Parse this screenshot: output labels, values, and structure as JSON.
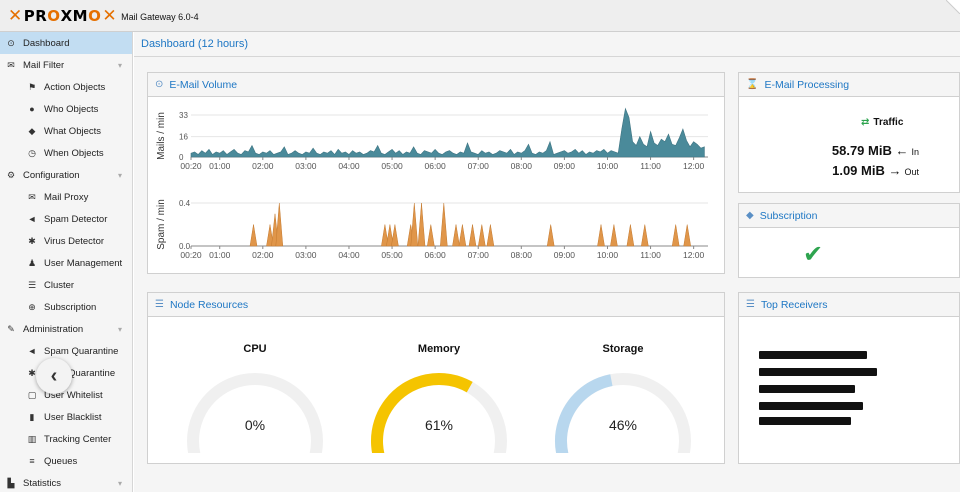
{
  "app": {
    "subtitle": "Mail Gateway 6.0-4"
  },
  "sidebar": {
    "items": [
      {
        "label": "Dashboard",
        "icon": "dashboard-icon",
        "glyph": "⊙",
        "level": "top",
        "active": true
      },
      {
        "label": "Mail Filter",
        "icon": "envelope-icon",
        "glyph": "✉",
        "level": "top",
        "expandable": true
      },
      {
        "label": "Action Objects",
        "icon": "flag-icon",
        "glyph": "⚑",
        "level": "sub"
      },
      {
        "label": "Who Objects",
        "icon": "user-circle-icon",
        "glyph": "●",
        "level": "sub"
      },
      {
        "label": "What Objects",
        "icon": "cube-icon",
        "glyph": "◆",
        "level": "sub"
      },
      {
        "label": "When Objects",
        "icon": "clock-icon",
        "glyph": "◷",
        "level": "sub"
      },
      {
        "label": "Configuration",
        "icon": "cogs-icon",
        "glyph": "⚙",
        "level": "top",
        "expandable": true
      },
      {
        "label": "Mail Proxy",
        "icon": "envelope-o-icon",
        "glyph": "✉",
        "level": "sub"
      },
      {
        "label": "Spam Detector",
        "icon": "bullhorn-icon",
        "glyph": "◄",
        "level": "sub"
      },
      {
        "label": "Virus Detector",
        "icon": "bug-icon",
        "glyph": "✱",
        "level": "sub"
      },
      {
        "label": "User Management",
        "icon": "users-icon",
        "glyph": "♟",
        "level": "sub"
      },
      {
        "label": "Cluster",
        "icon": "server-icon",
        "glyph": "☰",
        "level": "sub"
      },
      {
        "label": "Subscription",
        "icon": "support-icon",
        "glyph": "⊕",
        "level": "sub"
      },
      {
        "label": "Administration",
        "icon": "wrench-icon",
        "glyph": "✎",
        "level": "top",
        "expandable": true
      },
      {
        "label": "Spam Quarantine",
        "icon": "bullhorn-icon",
        "glyph": "◄",
        "level": "sub"
      },
      {
        "label": "Virus Quarantine",
        "icon": "bug-icon",
        "glyph": "✱",
        "level": "sub"
      },
      {
        "label": "User Whitelist",
        "icon": "file-o-icon",
        "glyph": "▢",
        "level": "sub"
      },
      {
        "label": "User Blacklist",
        "icon": "file-icon",
        "glyph": "▮",
        "level": "sub"
      },
      {
        "label": "Tracking Center",
        "icon": "map-o-icon",
        "glyph": "▥",
        "level": "sub"
      },
      {
        "label": "Queues",
        "icon": "bars-icon",
        "glyph": "≡",
        "level": "sub"
      },
      {
        "label": "Statistics",
        "icon": "bar-chart-icon",
        "glyph": "▙",
        "level": "top",
        "expandable": true
      }
    ]
  },
  "page": {
    "title": "Dashboard (12 hours)"
  },
  "email_volume": {
    "title": "E-Mail Volume"
  },
  "email_processing": {
    "title": "E-Mail Processing",
    "traffic_label": "Traffic",
    "in_value": "58.79 MiB",
    "in_label": "In",
    "out_value": "1.09 MiB",
    "out_label": "Out"
  },
  "subscription": {
    "title": "Subscription"
  },
  "node_resources": {
    "title": "Node Resources",
    "gauges": [
      {
        "label": "CPU",
        "value": "0%",
        "fraction": 0.0,
        "color": "#d9d9d9"
      },
      {
        "label": "Memory",
        "value": "61%",
        "fraction": 0.61,
        "color": "#f5c400"
      },
      {
        "label": "Storage",
        "value": "46%",
        "fraction": 0.46,
        "color": "#b8d7ee"
      }
    ]
  },
  "top_receivers": {
    "title": "Top Receivers"
  },
  "colors": {
    "mail_series": "#4a8a9a",
    "spam_series": "#e0964a",
    "accent": "#1e77c4"
  },
  "chart_data": [
    {
      "type": "area",
      "ylabel": "Mails / min",
      "ylim": [
        0,
        33
      ],
      "yticks": [
        "33",
        "16",
        "0"
      ],
      "xticks": [
        "00:20",
        "01:00",
        "02:00",
        "03:00",
        "04:00",
        "05:00",
        "06:00",
        "07:00",
        "08:00",
        "09:00",
        "10:00",
        "11:00",
        "12:00"
      ],
      "x_start_min": 20,
      "x_step_min": 5,
      "values": [
        3,
        4,
        2,
        5,
        3,
        6,
        2,
        4,
        3,
        5,
        2,
        4,
        6,
        3,
        2,
        5,
        4,
        9,
        3,
        2,
        4,
        3,
        5,
        2,
        3,
        4,
        8,
        2,
        3,
        5,
        3,
        2,
        4,
        3,
        7,
        3,
        2,
        4,
        3,
        5,
        2,
        6,
        3,
        4,
        2,
        5,
        3,
        4,
        2,
        3,
        5,
        4,
        9,
        3,
        2,
        4,
        6,
        3,
        5,
        2,
        4,
        3,
        8,
        3,
        2,
        5,
        4,
        3,
        6,
        3,
        2,
        4,
        5,
        3,
        2,
        4,
        3,
        11,
        4,
        3,
        2,
        5,
        3,
        4,
        2,
        3,
        5,
        4,
        3,
        6,
        2,
        4,
        3,
        5,
        10,
        3,
        2,
        4,
        3,
        5,
        12,
        2,
        3,
        4,
        5,
        3,
        4,
        6,
        3,
        5,
        2,
        4,
        3,
        5,
        4,
        6,
        3,
        5,
        4,
        3,
        22,
        38,
        31,
        12,
        9,
        16,
        10,
        8,
        20,
        11,
        9,
        14,
        12,
        18,
        10,
        9,
        15,
        22,
        13,
        8,
        12,
        10,
        7,
        8
      ]
    },
    {
      "type": "area",
      "ylabel": "Spam / min",
      "ylim": [
        0,
        0.4
      ],
      "yticks": [
        "0.4",
        "0.0"
      ],
      "xticks": [
        "00:20",
        "01:00",
        "02:00",
        "03:00",
        "04:00",
        "05:00",
        "06:00",
        "07:00",
        "08:00",
        "09:00",
        "10:00",
        "11:00",
        "12:00"
      ],
      "x_start_min": 20,
      "x_step_min": 5,
      "spikes": [
        {
          "time_min": 107,
          "value": 0.2
        },
        {
          "time_min": 130,
          "value": 0.2
        },
        {
          "time_min": 137,
          "value": 0.3
        },
        {
          "time_min": 143,
          "value": 0.4
        },
        {
          "time_min": 290,
          "value": 0.2
        },
        {
          "time_min": 297,
          "value": 0.2
        },
        {
          "time_min": 304,
          "value": 0.2
        },
        {
          "time_min": 326,
          "value": 0.2
        },
        {
          "time_min": 331,
          "value": 0.4
        },
        {
          "time_min": 341,
          "value": 0.4
        },
        {
          "time_min": 354,
          "value": 0.2
        },
        {
          "time_min": 372,
          "value": 0.4
        },
        {
          "time_min": 389,
          "value": 0.2
        },
        {
          "time_min": 398,
          "value": 0.2
        },
        {
          "time_min": 412,
          "value": 0.2
        },
        {
          "time_min": 425,
          "value": 0.2
        },
        {
          "time_min": 437,
          "value": 0.2
        },
        {
          "time_min": 521,
          "value": 0.2
        },
        {
          "time_min": 591,
          "value": 0.2
        },
        {
          "time_min": 609,
          "value": 0.2
        },
        {
          "time_min": 632,
          "value": 0.2
        },
        {
          "time_min": 652,
          "value": 0.2
        },
        {
          "time_min": 695,
          "value": 0.2
        },
        {
          "time_min": 711,
          "value": 0.2
        }
      ]
    }
  ]
}
